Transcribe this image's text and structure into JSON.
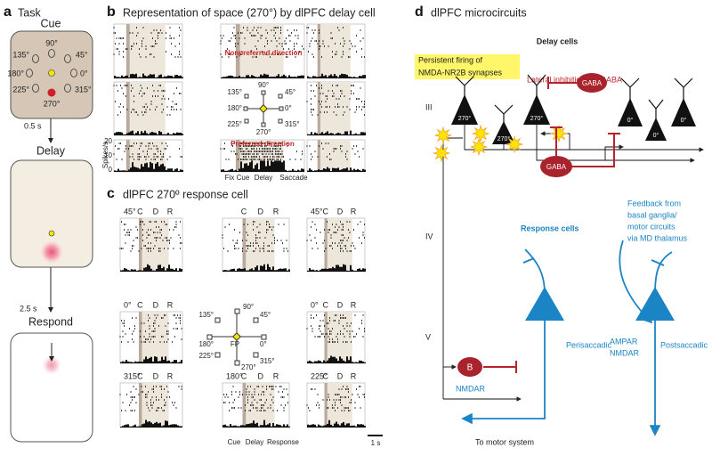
{
  "panel_a": {
    "letter": "a",
    "title": "Task",
    "cue": "Cue",
    "angles": [
      "90°",
      "45°",
      "0°",
      "315°",
      "270°",
      "225°",
      "180°",
      "135°"
    ],
    "delay_time": "0.5 s",
    "delay": "Delay",
    "respond_time": "2.5 s",
    "respond": "Respond"
  },
  "panel_b": {
    "letter": "b",
    "title": "Representation of space (270°) by dlPFC delay cell",
    "nonpreferred": "Nonpreferred direction",
    "preferred": "Preferred direction",
    "compass": [
      "90°",
      "45°",
      "0°",
      "315°",
      "270°",
      "225°",
      "180°",
      "135°"
    ],
    "y_label": "Spikes/s",
    "yticks": [
      "20",
      "10",
      "0"
    ],
    "x_labels": [
      "Fix",
      "Cue",
      "Delay",
      "Saccade"
    ]
  },
  "panel_c": {
    "letter": "c",
    "title": "dlPFC 270º response cell",
    "epochs": [
      "C",
      "D",
      "R"
    ],
    "cell_labels": [
      "45°",
      "45°",
      "0°",
      "0°",
      "315°",
      "180°",
      "225°"
    ],
    "compass": [
      "90°",
      "45°",
      "0°",
      "315°",
      "270°",
      "225°",
      "180°",
      "135°"
    ],
    "fp": "FP",
    "x_labels": [
      "Cue",
      "Delay",
      "Response"
    ],
    "scale": "1 s"
  },
  "panel_d": {
    "letter": "d",
    "title": "dlPFC microcircuits",
    "delay_cells": "Delay cells",
    "persistent": [
      "Persistent firing of",
      "NMDA-NR2B synapses"
    ],
    "lateral": "Lateral inhibition via GABA",
    "gaba": [
      "GABA",
      "GABA"
    ],
    "layers": [
      "III",
      "IV",
      "V"
    ],
    "neurons": [
      "270°",
      "270°",
      "270°",
      "0°",
      "0°",
      "0°"
    ],
    "response_cells": "Response cells",
    "feedback": [
      "Feedback from",
      "basal ganglia/",
      "motor circuits",
      "via MD thalamus"
    ],
    "receptors": [
      "AMPAR",
      "NMDAR"
    ],
    "postsaccadic": "Postsaccadic",
    "perisaccadic": "Perisaccadic",
    "b": "B",
    "nmdar": "NMDAR",
    "to_motor": "To motor system"
  }
}
